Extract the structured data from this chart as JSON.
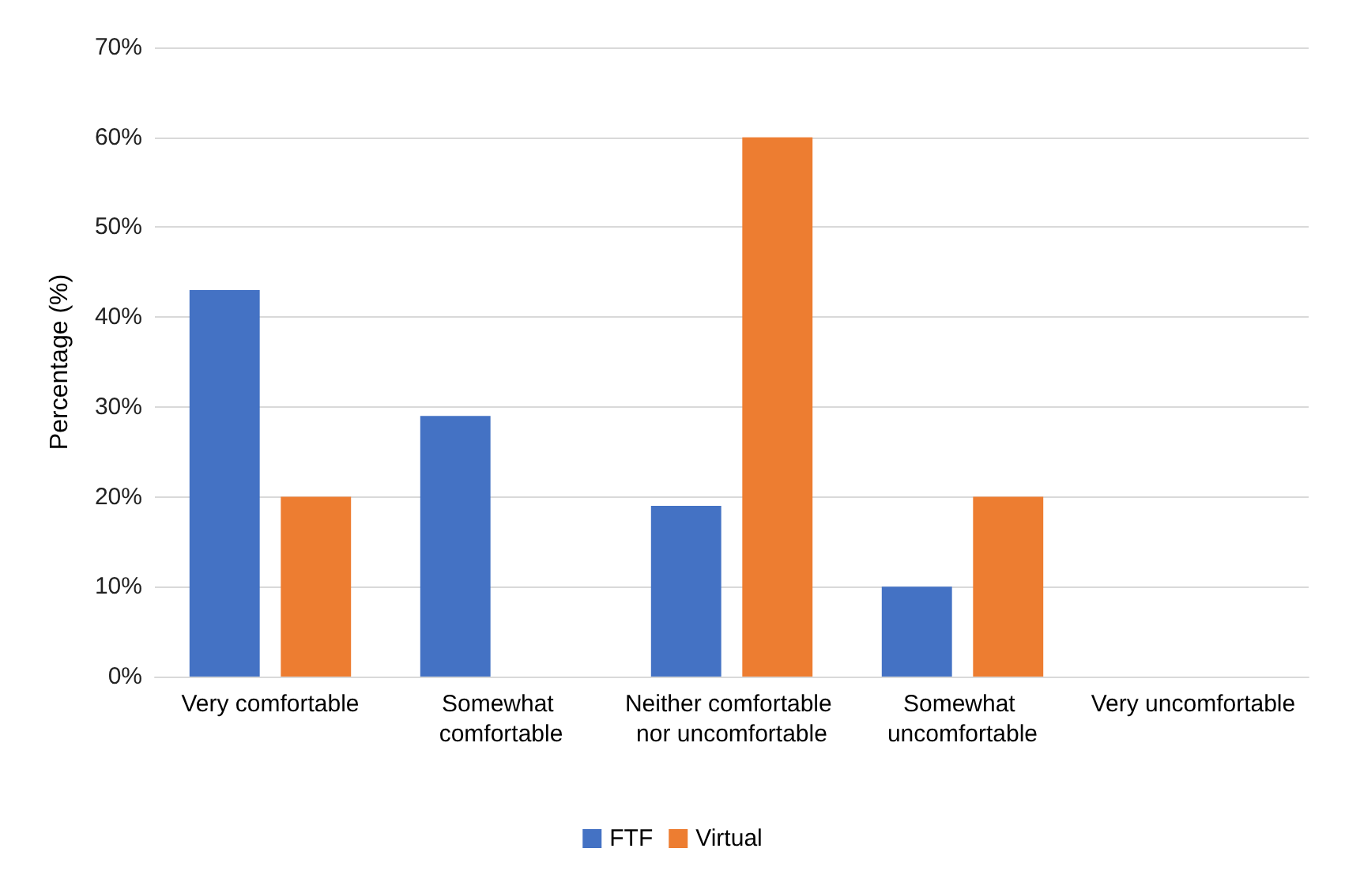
{
  "chart_data": {
    "type": "bar",
    "ylabel": "Percentage (%)",
    "categories": [
      "Very comfortable",
      "Somewhat comfortable",
      "Neither comfortable nor uncomfortable",
      "Somewhat uncomfortable",
      "Very uncomfortable"
    ],
    "series": [
      {
        "name": "FTF",
        "color": "#4472c4",
        "values": [
          43,
          29,
          19,
          10,
          0
        ]
      },
      {
        "name": "Virtual",
        "color": "#ed7d31",
        "values": [
          20,
          0,
          60,
          20,
          0
        ]
      }
    ],
    "ylim": [
      0,
      70
    ],
    "yticks": [
      {
        "value": 0,
        "label": "0%"
      },
      {
        "value": 10,
        "label": "10%"
      },
      {
        "value": 20,
        "label": "20%"
      },
      {
        "value": 30,
        "label": "30%"
      },
      {
        "value": 40,
        "label": "40%"
      },
      {
        "value": 50,
        "label": "50%"
      },
      {
        "value": 60,
        "label": "60%"
      },
      {
        "value": 70,
        "label": "70%"
      }
    ],
    "grid": "y",
    "legend": "bottom"
  }
}
